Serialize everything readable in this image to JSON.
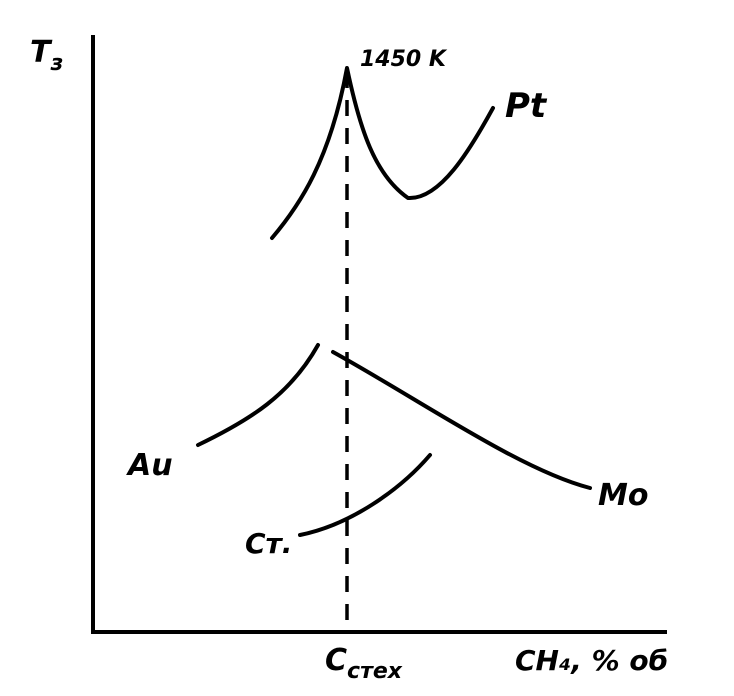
{
  "axes": {
    "y_label": {
      "main": "T",
      "sub": "з"
    },
    "x_label": "CH₄, % об",
    "x_marker": {
      "main": "C",
      "sub": "стех"
    }
  },
  "annotations": {
    "peak": "1450 K"
  },
  "curves": [
    {
      "label": "Pt"
    },
    {
      "label": "Au"
    },
    {
      "label": "Mo"
    },
    {
      "label": "Cт."
    }
  ]
}
